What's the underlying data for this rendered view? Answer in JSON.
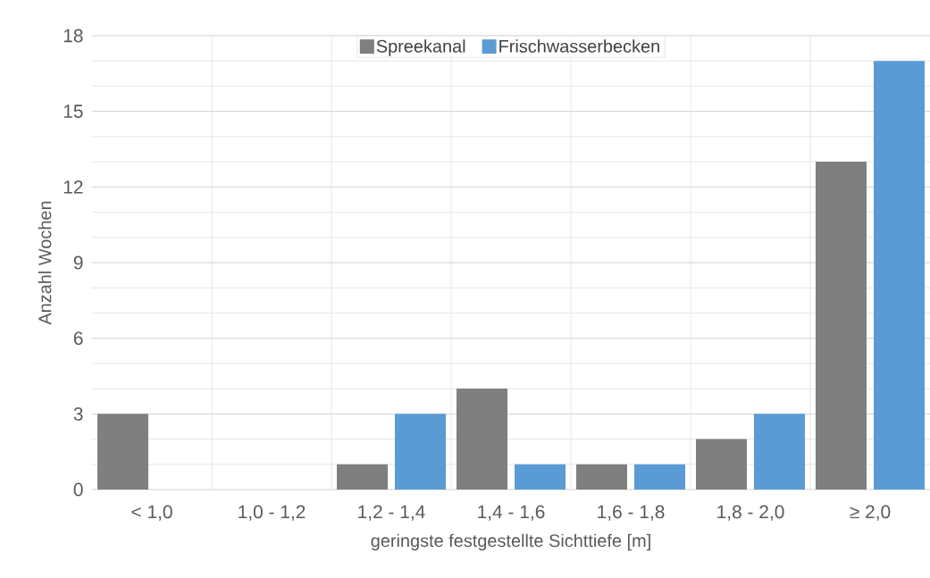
{
  "chart_data": {
    "type": "bar",
    "xlabel": "geringste festgestellte Sichttiefe [m]",
    "ylabel": "Anzahl Wochen",
    "categories": [
      "< 1,0",
      "1,0 - 1,2",
      "1,2 - 1,4",
      "1,4 - 1,6",
      "1,6 - 1,8",
      "1,8 - 2,0",
      "≥ 2,0"
    ],
    "series": [
      {
        "name": "Spreekanal",
        "color": "#7f7f7f",
        "values": [
          3,
          0,
          1,
          4,
          1,
          2,
          13
        ]
      },
      {
        "name": "Frischwasserbecken",
        "color": "#5b9bd5",
        "values": [
          0,
          0,
          3,
          1,
          1,
          3,
          17
        ]
      }
    ],
    "ylim": [
      0,
      18
    ],
    "yticks": [
      0,
      3,
      6,
      9,
      12,
      15,
      18
    ],
    "grid": true,
    "legend": "top"
  }
}
